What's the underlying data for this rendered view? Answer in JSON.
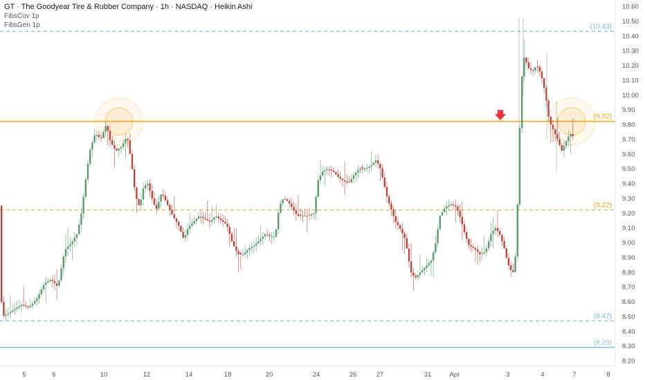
{
  "header": {
    "title": "GT · The Goodyear Tire & Rubber Company · 1h · NASDAQ · Heikin Ashi",
    "indicators": [
      "FibsCov 1p",
      "FibsGen 1p"
    ]
  },
  "colors": {
    "up": "#5b9a6e",
    "down": "#b5483d",
    "orange": "#f5a623",
    "orange_dashed": "#f0a030",
    "blue_dashed": "#7fb6e0",
    "blue_solid": "#8cc4e8",
    "arrow": "#e8323c",
    "axis_text": "#50535e"
  },
  "chart_data": {
    "type": "candlestick",
    "style": "Heikin Ashi",
    "ylim": [
      8.17,
      10.65
    ],
    "y_ticks": [
      "10.60",
      "10.50",
      "10.40",
      "10.30",
      "10.20",
      "10.10",
      "10.00",
      "9.90",
      "9.80",
      "9.70",
      "9.60",
      "9.50",
      "9.40",
      "9.30",
      "9.20",
      "9.10",
      "9.00",
      "8.90",
      "8.80",
      "8.70",
      "8.60",
      "8.50",
      "8.40",
      "8.30",
      "8.20"
    ],
    "x_ticks": [
      "5",
      "6",
      "10",
      "12",
      "14",
      "18",
      "20",
      "24",
      "26",
      "27",
      "31",
      "Apr",
      "3",
      "4",
      "7",
      "8"
    ],
    "levels": [
      {
        "label": "(10.43)",
        "value": 10.43,
        "style": "dashed",
        "color": "blue"
      },
      {
        "label": "(9.82)",
        "value": 9.82,
        "style": "solid",
        "color": "orange"
      },
      {
        "label": "(9.22)",
        "value": 9.22,
        "style": "dashed",
        "color": "orange"
      },
      {
        "label": "(8.47)",
        "value": 8.47,
        "style": "dashed",
        "color": "blue"
      },
      {
        "label": "(8.29)",
        "value": 8.29,
        "style": "solid",
        "color": "blue"
      }
    ],
    "annotations": [
      {
        "type": "circle",
        "value": 9.82,
        "near_tick": "10"
      },
      {
        "type": "circle",
        "value": 9.82,
        "near_tick": "7"
      },
      {
        "type": "down-arrow",
        "value": 9.86,
        "near_tick": "3"
      }
    ],
    "path_points": [
      [
        0,
        8.78
      ],
      [
        4,
        8.5
      ],
      [
        12,
        8.52
      ],
      [
        22,
        8.55
      ],
      [
        32,
        8.58
      ],
      [
        42,
        8.56
      ],
      [
        54,
        8.62
      ],
      [
        64,
        8.72
      ],
      [
        74,
        8.75
      ],
      [
        84,
        8.7
      ],
      [
        94,
        8.95
      ],
      [
        104,
        9.0
      ],
      [
        112,
        9.06
      ],
      [
        118,
        9.2
      ],
      [
        124,
        9.42
      ],
      [
        130,
        9.62
      ],
      [
        138,
        9.74
      ],
      [
        146,
        9.7
      ],
      [
        154,
        9.8
      ],
      [
        160,
        9.68
      ],
      [
        168,
        9.62
      ],
      [
        176,
        9.65
      ],
      [
        184,
        9.72
      ],
      [
        190,
        9.55
      ],
      [
        196,
        9.32
      ],
      [
        202,
        9.24
      ],
      [
        208,
        9.38
      ],
      [
        214,
        9.4
      ],
      [
        220,
        9.3
      ],
      [
        226,
        9.22
      ],
      [
        234,
        9.34
      ],
      [
        242,
        9.26
      ],
      [
        250,
        9.18
      ],
      [
        258,
        9.12
      ],
      [
        266,
        9.02
      ],
      [
        272,
        9.1
      ],
      [
        280,
        9.14
      ],
      [
        288,
        9.18
      ],
      [
        296,
        9.16
      ],
      [
        304,
        9.14
      ],
      [
        312,
        9.18
      ],
      [
        320,
        9.15
      ],
      [
        328,
        9.12
      ],
      [
        336,
        9.0
      ],
      [
        344,
        8.92
      ],
      [
        352,
        8.92
      ],
      [
        360,
        8.96
      ],
      [
        368,
        8.98
      ],
      [
        376,
        9.02
      ],
      [
        384,
        9.06
      ],
      [
        392,
        9.04
      ],
      [
        398,
        9.04
      ],
      [
        404,
        9.25
      ],
      [
        410,
        9.3
      ],
      [
        416,
        9.28
      ],
      [
        422,
        9.24
      ],
      [
        430,
        9.18
      ],
      [
        438,
        9.18
      ],
      [
        446,
        9.18
      ],
      [
        454,
        9.2
      ],
      [
        460,
        9.42
      ],
      [
        466,
        9.48
      ],
      [
        474,
        9.5
      ],
      [
        482,
        9.48
      ],
      [
        490,
        9.44
      ],
      [
        496,
        9.42
      ],
      [
        504,
        9.4
      ],
      [
        512,
        9.46
      ],
      [
        520,
        9.5
      ],
      [
        528,
        9.5
      ],
      [
        536,
        9.52
      ],
      [
        544,
        9.56
      ],
      [
        550,
        9.5
      ],
      [
        554,
        9.42
      ],
      [
        560,
        9.3
      ],
      [
        566,
        9.22
      ],
      [
        572,
        9.14
      ],
      [
        578,
        9.1
      ],
      [
        586,
        9.02
      ],
      [
        594,
        8.8
      ],
      [
        600,
        8.76
      ],
      [
        608,
        8.8
      ],
      [
        616,
        8.84
      ],
      [
        624,
        8.88
      ],
      [
        630,
        9.0
      ],
      [
        636,
        9.18
      ],
      [
        644,
        9.24
      ],
      [
        652,
        9.26
      ],
      [
        660,
        9.24
      ],
      [
        666,
        9.16
      ],
      [
        672,
        9.06
      ],
      [
        678,
        8.98
      ],
      [
        686,
        8.96
      ],
      [
        694,
        8.92
      ],
      [
        702,
        8.94
      ],
      [
        710,
        9.06
      ],
      [
        716,
        9.1
      ],
      [
        722,
        9.06
      ],
      [
        728,
        8.98
      ],
      [
        734,
        8.86
      ],
      [
        740,
        8.8
      ],
      [
        744,
        8.8
      ],
      [
        748,
        9.22
      ],
      [
        750,
        9.6
      ],
      [
        754,
        10.1
      ],
      [
        758,
        10.26
      ],
      [
        764,
        10.18
      ],
      [
        770,
        10.16
      ],
      [
        776,
        10.2
      ],
      [
        782,
        10.14
      ],
      [
        788,
        10.02
      ],
      [
        794,
        9.82
      ],
      [
        800,
        9.76
      ],
      [
        806,
        9.7
      ],
      [
        812,
        9.62
      ],
      [
        818,
        9.68
      ],
      [
        824,
        9.74
      ],
      [
        828,
        9.72
      ]
    ]
  }
}
